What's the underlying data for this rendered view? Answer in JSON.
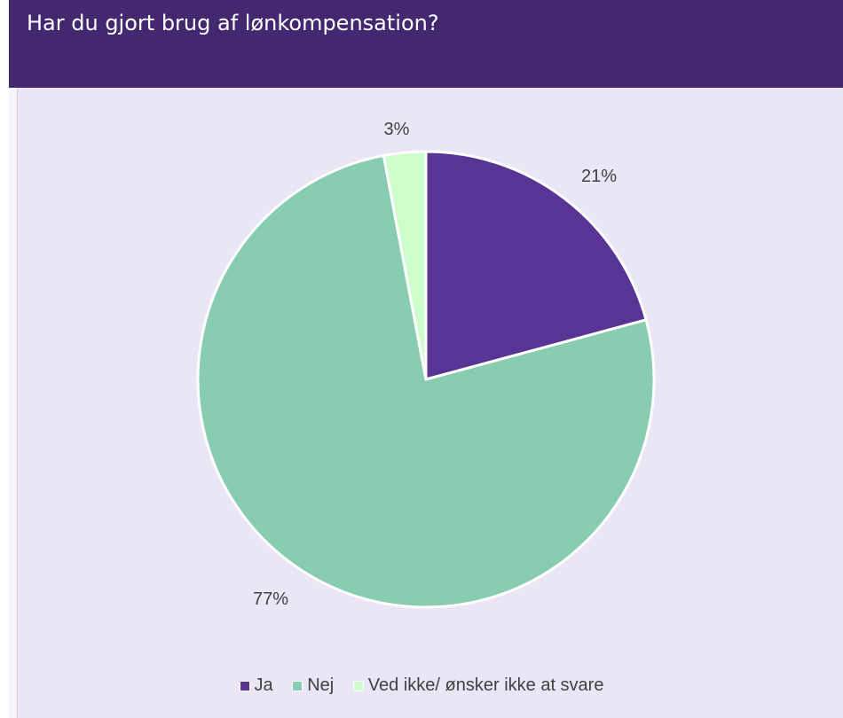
{
  "header": {
    "title": "Har du gjort brug af lønkompensation?"
  },
  "chart_data": {
    "type": "pie",
    "title": "Har du gjort brug af lønkompensation?",
    "categories": [
      "Ja",
      "Nej",
      "Ved ikke/ ønsker ikke at svare"
    ],
    "values": [
      21,
      77,
      3
    ],
    "labels": [
      "21%",
      "77%",
      "3%"
    ],
    "colors": [
      "#583594",
      "#88ccb1",
      "#ccffcc"
    ],
    "legend_position": "bottom"
  },
  "legend": {
    "items": [
      {
        "label": "Ja",
        "color": "#583594"
      },
      {
        "label": "Nej",
        "color": "#88ccb1"
      },
      {
        "label": "Ved ikke/ ønsker ikke at svare",
        "color": "#ccffcc"
      }
    ]
  }
}
